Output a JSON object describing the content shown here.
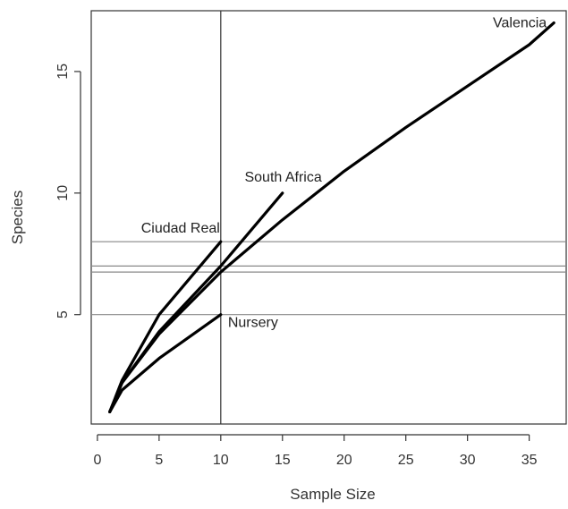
{
  "chart_data": {
    "type": "line",
    "title": "",
    "xlabel": "Sample Size",
    "ylabel": "Species",
    "xlim": [
      -0.5,
      38
    ],
    "ylim": [
      0.5,
      17.5
    ],
    "xticks": [
      0,
      5,
      10,
      15,
      20,
      25,
      30,
      35
    ],
    "yticks": [
      5,
      10,
      15
    ],
    "xtick_labels": [
      "0",
      "5",
      "10",
      "15",
      "20",
      "25",
      "30",
      "35"
    ],
    "ytick_labels": [
      "5",
      "10",
      "15"
    ],
    "grid": false,
    "vertical_reference_lines": [
      10
    ],
    "horizontal_reference_lines": [
      8,
      7,
      6.75,
      5
    ],
    "line_color": "#000000",
    "reference_line_color": "#888888",
    "series": [
      {
        "name": "Valencia",
        "x": [
          1,
          2,
          5,
          10,
          15,
          20,
          25,
          30,
          35,
          37
        ],
        "y": [
          1,
          2.2,
          4.2,
          6.75,
          8.9,
          10.9,
          12.7,
          14.4,
          16.1,
          17
        ]
      },
      {
        "name": "South Africa",
        "x": [
          1,
          2,
          5,
          10,
          15
        ],
        "y": [
          1,
          2.2,
          4.3,
          7.0,
          10.0
        ]
      },
      {
        "name": "Ciudad Real",
        "x": [
          1,
          2,
          5,
          10
        ],
        "y": [
          1,
          2.3,
          5.0,
          8.0
        ]
      },
      {
        "name": "Nursery",
        "x": [
          1,
          2,
          5,
          10
        ],
        "y": [
          1,
          1.9,
          3.2,
          5.0
        ]
      }
    ]
  }
}
